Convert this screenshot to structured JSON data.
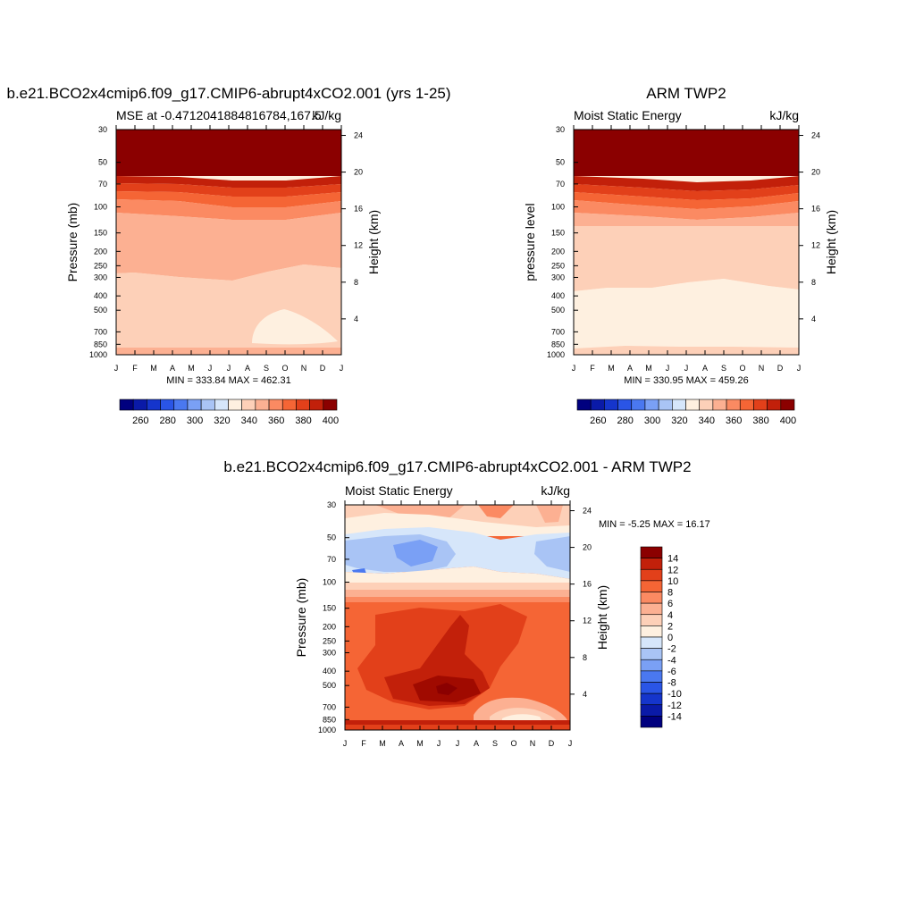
{
  "chart_data": [
    {
      "type": "heatmap",
      "title": "b.e21.BCO2x4cmip6.f09_g17.CMIP6-abrupt4xCO2.001 (yrs 1-25)",
      "subtitle_left": "MSE at -0.4712041884816784,167.5",
      "subtitle_right": "kJ/kg",
      "ylabel": "Pressure (mb)",
      "ylabel_right": "Height (km)",
      "x_ticks": [
        "J",
        "F",
        "M",
        "A",
        "M",
        "J",
        "J",
        "A",
        "S",
        "O",
        "N",
        "D",
        "J"
      ],
      "y_ticks": [
        "30",
        "50",
        "70",
        "100",
        "150",
        "200",
        "250",
        "300",
        "400",
        "500",
        "700",
        "850",
        "1000"
      ],
      "y_ticks_right": [
        "24",
        "20",
        "16",
        "12",
        "8",
        "4"
      ],
      "minmax_label": "MIN = 333.84 MAX = 462.31",
      "colorbar": {
        "levels": [
          250,
          260,
          270,
          280,
          290,
          300,
          310,
          320,
          330,
          340,
          350,
          360,
          370,
          380,
          390,
          400
        ],
        "labels": [
          "260",
          "280",
          "300",
          "320",
          "340",
          "360",
          "380",
          "400"
        ]
      },
      "layers_from_top": [
        {
          "value": 405
        },
        {
          "value": 395
        },
        {
          "value": 385
        },
        {
          "value": 375
        },
        {
          "value": 365
        },
        {
          "value": 355
        },
        {
          "value": 345
        },
        {
          "value": 335
        },
        {
          "value": 345
        },
        {
          "value": 355
        }
      ]
    },
    {
      "type": "heatmap",
      "title": "ARM TWP2",
      "subtitle_left": "Moist Static Energy",
      "subtitle_right": "kJ/kg",
      "ylabel": "pressure level",
      "ylabel_right": "Height (km)",
      "x_ticks": [
        "J",
        "F",
        "M",
        "A",
        "M",
        "J",
        "J",
        "A",
        "S",
        "O",
        "N",
        "D",
        "J"
      ],
      "y_ticks": [
        "30",
        "50",
        "70",
        "100",
        "150",
        "200",
        "250",
        "300",
        "400",
        "500",
        "700",
        "850",
        "1000"
      ],
      "y_ticks_right": [
        "24",
        "20",
        "16",
        "12",
        "8",
        "4"
      ],
      "minmax_label": "MIN = 330.95 MAX = 459.26",
      "colorbar": {
        "levels": [
          250,
          260,
          270,
          280,
          290,
          300,
          310,
          320,
          330,
          340,
          350,
          360,
          370,
          380,
          390,
          400
        ],
        "labels": [
          "260",
          "280",
          "300",
          "320",
          "340",
          "360",
          "380",
          "400"
        ]
      },
      "layers_from_top": [
        {
          "value": 405
        },
        {
          "value": 395
        },
        {
          "value": 385
        },
        {
          "value": 375
        },
        {
          "value": 365
        },
        {
          "value": 355
        },
        {
          "value": 345
        },
        {
          "value": 335
        },
        {
          "value": 345
        }
      ]
    },
    {
      "type": "heatmap",
      "title": "b.e21.BCO2x4cmip6.f09_g17.CMIP6-abrupt4xCO2.001 - ARM TWP2",
      "subtitle_left": "Moist Static Energy",
      "subtitle_right": "kJ/kg",
      "ylabel": "Pressure (mb)",
      "ylabel_right": "Height (km)",
      "x_ticks": [
        "J",
        "F",
        "M",
        "A",
        "M",
        "J",
        "J",
        "A",
        "S",
        "O",
        "N",
        "D",
        "J"
      ],
      "y_ticks": [
        "30",
        "50",
        "70",
        "100",
        "150",
        "200",
        "250",
        "300",
        "400",
        "500",
        "700",
        "850",
        "1000"
      ],
      "y_ticks_right": [
        "24",
        "20",
        "16",
        "12",
        "8",
        "4"
      ],
      "minmax_label": "MIN =  -5.25 MAX =  16.17",
      "colorbar": {
        "levels": [
          -15,
          -14,
          -12,
          -10,
          -8,
          -6,
          -4,
          -2,
          0,
          2,
          4,
          6,
          8,
          10,
          12,
          14,
          16
        ],
        "labels": [
          "14",
          "12",
          "10",
          "8",
          "6",
          "4",
          "2",
          "0",
          "-2",
          "-4",
          "-6",
          "-8",
          "-10",
          "-12",
          "-14"
        ]
      },
      "layers_from_top": [
        {
          "value": 3
        },
        {
          "value": -1
        },
        {
          "value": 1
        },
        {
          "value": 5
        },
        {
          "value": 9
        },
        {
          "value": 5
        }
      ]
    }
  ],
  "palette": {
    "main": [
      "#00007f",
      "#0a1aa8",
      "#1535cc",
      "#2a55e6",
      "#4a78f0",
      "#7aa0f5",
      "#a9c4f5",
      "#d6e6fa",
      "#fef0e0",
      "#fdd0b8",
      "#fcb092",
      "#fb8a62",
      "#f56535",
      "#e2401a",
      "#c2200a",
      "#8b0000"
    ],
    "diff": [
      "#00007f",
      "#0a1aa8",
      "#1535cc",
      "#2a55e6",
      "#4a78f0",
      "#7aa0f5",
      "#a9c4f5",
      "#d6e6fa",
      "#fef0e0",
      "#fdd0b8",
      "#fcb092",
      "#fb8a62",
      "#f56535",
      "#e2401a",
      "#c2200a",
      "#8b0000"
    ]
  }
}
